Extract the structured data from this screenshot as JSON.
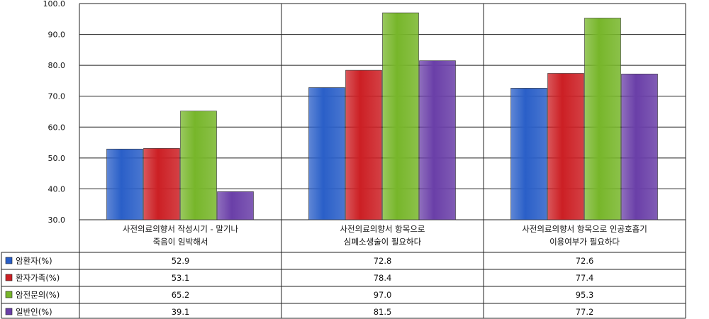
{
  "chart_data": {
    "type": "bar",
    "title": "",
    "xlabel": "",
    "ylabel": "",
    "ylim": [
      30,
      100
    ],
    "yticks": [
      "30.0",
      "40.0",
      "50.0",
      "60.0",
      "70.0",
      "80.0",
      "90.0",
      "100.0"
    ],
    "grid": true,
    "legend": "data-table-left",
    "categories": [
      [
        "사전의료의향서 작성시기 - 말기나",
        "죽음이 임박해서"
      ],
      [
        "사전의료의향서 항목으로",
        "심폐소생술이 필요하다"
      ],
      [
        "사전의료의향서 항목으로 인공호흡기",
        "이용여부가 필요하다"
      ]
    ],
    "series": [
      {
        "name": "암환자(%)",
        "color": "#2a5fc8",
        "values": [
          52.9,
          72.8,
          72.6
        ],
        "labels": [
          "52.9",
          "72.8",
          "72.6"
        ]
      },
      {
        "name": "환자가족(%)",
        "color": "#cc1f24",
        "values": [
          53.1,
          78.4,
          77.4
        ],
        "labels": [
          "53.1",
          "78.4",
          "77.4"
        ]
      },
      {
        "name": "암전문의(%)",
        "color": "#77b62a",
        "values": [
          65.2,
          97.0,
          95.3
        ],
        "labels": [
          "65.2",
          "97.0",
          "95.3"
        ]
      },
      {
        "name": "일반인(%)",
        "color": "#6a3fa8",
        "values": [
          39.1,
          81.5,
          77.2
        ],
        "labels": [
          "39.1",
          "81.5",
          "77.2"
        ]
      }
    ]
  }
}
